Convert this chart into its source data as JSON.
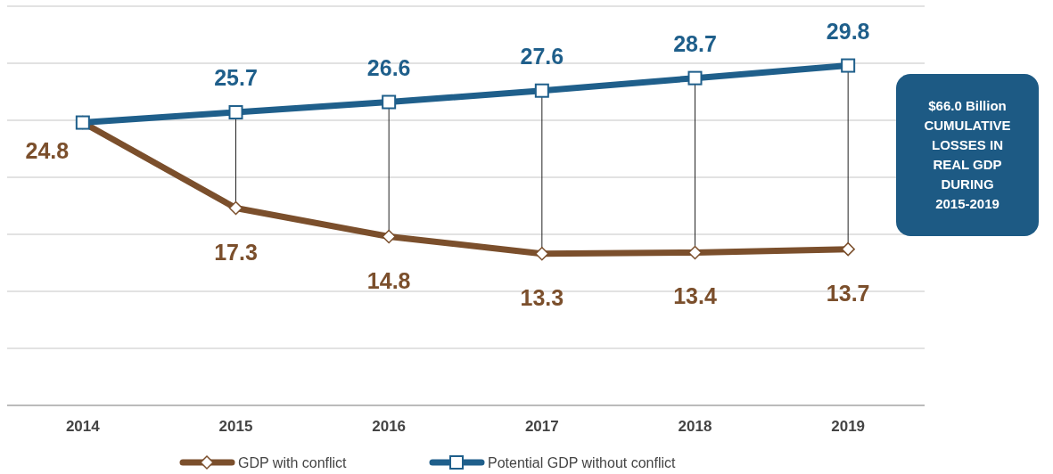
{
  "chart_data": {
    "type": "line",
    "categories": [
      "2014",
      "2015",
      "2016",
      "2017",
      "2018",
      "2019"
    ],
    "series": [
      {
        "name": "GDP with conflict",
        "color": "#7b4f2c",
        "marker": "diamond",
        "values": [
          24.8,
          17.3,
          14.8,
          13.3,
          13.4,
          13.7
        ],
        "value_labels": [
          "24.8",
          "17.3",
          "14.8",
          "13.3",
          "13.4",
          "13.7"
        ]
      },
      {
        "name": "Potential GDP without conflict",
        "color": "#1f5f8b",
        "marker": "square",
        "values": [
          24.8,
          25.7,
          26.6,
          27.6,
          28.7,
          29.8
        ],
        "value_labels": [
          null,
          "25.7",
          "26.6",
          "27.6",
          "28.7",
          "29.8"
        ]
      }
    ],
    "ylim": [
      0,
      35
    ],
    "yticks": [
      {
        "value": 0,
        "label": null
      },
      {
        "value": 5,
        "label": null
      },
      {
        "value": 10,
        "label": null
      },
      {
        "value": 15,
        "label": null
      },
      {
        "value": 20,
        "label": null
      },
      {
        "value": 25,
        "label": null
      },
      {
        "value": 30,
        "label": null
      },
      {
        "value": 35,
        "label": null
      }
    ],
    "tick_labels": "x",
    "grid": "y",
    "legend": "bottom",
    "annotations": [
      "$66.0 Billion CUMULATIVE LOSSES IN REAL GDP DURING 2015-2019"
    ]
  }
}
